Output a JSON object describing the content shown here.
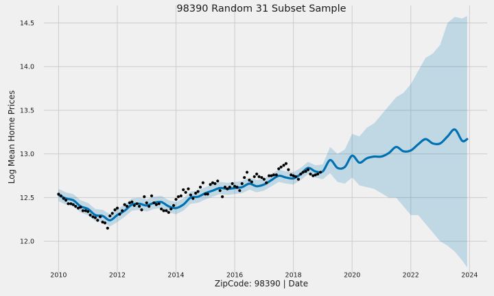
{
  "chart_data": {
    "type": "line",
    "title": "98390 Random 31 Subset Sample",
    "xlabel": "ZipCode: 98390 | Date",
    "ylabel": "Log Mean Home Prices",
    "xlim": [
      2009.5,
      2024.6
    ],
    "ylim": [
      11.64,
      14.7
    ],
    "x_ticks": [
      2010,
      2012,
      2014,
      2016,
      2018,
      2020,
      2022,
      2024
    ],
    "y_ticks": [
      12.0,
      12.5,
      13.0,
      13.5,
      14.0,
      14.5
    ],
    "grid": true,
    "colors": {
      "background": "#f0f0f0",
      "grid": "#cbcbcb",
      "forecast_line": "#0072b2",
      "uncertainty_band": "#0072b2",
      "observed_points": "#000000"
    },
    "series": [
      {
        "role": "observed points",
        "x": [
          2010.0,
          2010.08,
          2010.17,
          2010.25,
          2010.33,
          2010.42,
          2010.5,
          2010.58,
          2010.67,
          2010.75,
          2010.83,
          2010.92,
          2011.0,
          2011.08,
          2011.17,
          2011.25,
          2011.33,
          2011.42,
          2011.5,
          2011.58,
          2011.67,
          2011.75,
          2011.83,
          2011.92,
          2012.0,
          2012.08,
          2012.17,
          2012.25,
          2012.33,
          2012.42,
          2012.5,
          2012.58,
          2012.67,
          2012.75,
          2012.83,
          2012.92,
          2013.0,
          2013.08,
          2013.17,
          2013.25,
          2013.33,
          2013.42,
          2013.5,
          2013.58,
          2013.67,
          2013.75,
          2013.83,
          2013.92,
          2014.0,
          2014.08,
          2014.17,
          2014.25,
          2014.33,
          2014.42,
          2014.5,
          2014.58,
          2014.67,
          2014.75,
          2014.83,
          2014.92,
          2015.0,
          2015.08,
          2015.17,
          2015.25,
          2015.33,
          2015.42,
          2015.5,
          2015.58,
          2015.67,
          2015.75,
          2015.83,
          2015.92,
          2016.0,
          2016.08,
          2016.17,
          2016.25,
          2016.33,
          2016.42,
          2016.5,
          2016.58,
          2016.67,
          2016.75,
          2016.83,
          2016.92,
          2017.0,
          2017.08,
          2017.17,
          2017.25,
          2017.33,
          2017.42,
          2017.5,
          2017.58,
          2017.67,
          2017.75,
          2017.83,
          2017.92,
          2018.0,
          2018.08,
          2018.17,
          2018.25,
          2018.33,
          2018.42,
          2018.5,
          2018.58,
          2018.67,
          2018.75,
          2018.83,
          2018.92
        ],
        "y": [
          12.54,
          12.52,
          12.49,
          12.47,
          12.43,
          12.43,
          12.42,
          12.4,
          12.38,
          12.39,
          12.35,
          12.35,
          12.34,
          12.3,
          12.28,
          12.27,
          12.24,
          12.28,
          12.22,
          12.21,
          12.15,
          12.29,
          12.32,
          12.36,
          12.38,
          12.31,
          12.35,
          12.42,
          12.4,
          12.44,
          12.45,
          12.41,
          12.43,
          12.4,
          12.36,
          12.51,
          12.44,
          12.4,
          12.52,
          12.44,
          12.42,
          12.43,
          12.37,
          12.35,
          12.35,
          12.33,
          12.37,
          12.41,
          12.48,
          12.51,
          12.52,
          12.59,
          12.56,
          12.6,
          12.53,
          12.49,
          12.55,
          12.57,
          12.62,
          12.67,
          12.54,
          12.54,
          12.65,
          12.67,
          12.66,
          12.69,
          12.58,
          12.51,
          12.62,
          12.6,
          12.62,
          12.66,
          12.63,
          12.62,
          12.58,
          12.66,
          12.73,
          12.79,
          12.7,
          12.68,
          12.74,
          12.77,
          12.74,
          12.73,
          12.71,
          12.67,
          12.75,
          12.75,
          12.76,
          12.76,
          12.83,
          12.85,
          12.87,
          12.89,
          12.82,
          12.76,
          12.75,
          12.74,
          12.71,
          12.77,
          12.79,
          12.8,
          12.82,
          12.77,
          12.75,
          12.76,
          12.77,
          12.79
        ]
      },
      {
        "role": "forecast",
        "x": [
          2010.0,
          2010.25,
          2010.5,
          2010.75,
          2011.0,
          2011.25,
          2011.5,
          2011.75,
          2012.0,
          2012.25,
          2012.5,
          2012.75,
          2013.0,
          2013.25,
          2013.5,
          2013.75,
          2014.0,
          2014.25,
          2014.5,
          2014.75,
          2015.0,
          2015.25,
          2015.5,
          2015.75,
          2016.0,
          2016.25,
          2016.5,
          2016.75,
          2017.0,
          2017.25,
          2017.5,
          2017.75,
          2018.0,
          2018.25,
          2018.5,
          2018.75,
          2019.0,
          2019.25,
          2019.5,
          2019.75,
          2020.0,
          2020.25,
          2020.5,
          2020.75,
          2021.0,
          2021.25,
          2021.5,
          2021.75,
          2022.0,
          2022.25,
          2022.5,
          2022.75,
          2023.0,
          2023.25,
          2023.5,
          2023.75,
          2023.92
        ],
        "y": [
          12.53,
          12.49,
          12.47,
          12.4,
          12.37,
          12.3,
          12.29,
          12.24,
          12.3,
          12.35,
          12.42,
          12.43,
          12.41,
          12.44,
          12.45,
          12.4,
          12.38,
          12.42,
          12.5,
          12.51,
          12.55,
          12.58,
          12.61,
          12.6,
          12.61,
          12.62,
          12.66,
          12.63,
          12.65,
          12.7,
          12.75,
          12.73,
          12.72,
          12.77,
          12.84,
          12.8,
          12.8,
          12.93,
          12.84,
          12.85,
          12.98,
          12.9,
          12.95,
          12.97,
          12.97,
          13.01,
          13.08,
          13.03,
          13.04,
          13.11,
          13.17,
          13.12,
          13.12,
          13.2,
          13.28,
          13.15,
          13.17
        ],
        "lower": [
          12.46,
          12.42,
          12.4,
          12.33,
          12.3,
          12.23,
          12.22,
          12.17,
          12.22,
          12.28,
          12.35,
          12.36,
          12.34,
          12.37,
          12.38,
          12.33,
          12.31,
          12.35,
          12.43,
          12.44,
          12.48,
          12.51,
          12.54,
          12.53,
          12.54,
          12.55,
          12.59,
          12.56,
          12.58,
          12.63,
          12.68,
          12.66,
          12.65,
          12.7,
          12.77,
          12.73,
          12.71,
          12.78,
          12.68,
          12.66,
          12.73,
          12.64,
          12.62,
          12.6,
          12.55,
          12.5,
          12.5,
          12.4,
          12.3,
          12.3,
          12.2,
          12.1,
          12.0,
          11.95,
          11.88,
          11.78,
          11.7
        ],
        "upper": [
          12.6,
          12.56,
          12.54,
          12.47,
          12.44,
          12.37,
          12.36,
          12.31,
          12.37,
          12.42,
          12.49,
          12.5,
          12.48,
          12.51,
          12.52,
          12.47,
          12.45,
          12.49,
          12.57,
          12.58,
          12.62,
          12.65,
          12.68,
          12.67,
          12.68,
          12.69,
          12.73,
          12.7,
          12.72,
          12.77,
          12.82,
          12.8,
          12.79,
          12.84,
          12.91,
          12.87,
          12.88,
          13.08,
          13.0,
          13.05,
          13.23,
          13.2,
          13.3,
          13.35,
          13.45,
          13.55,
          13.65,
          13.7,
          13.8,
          13.95,
          14.1,
          14.15,
          14.25,
          14.5,
          14.57,
          14.55,
          14.58
        ]
      }
    ]
  }
}
